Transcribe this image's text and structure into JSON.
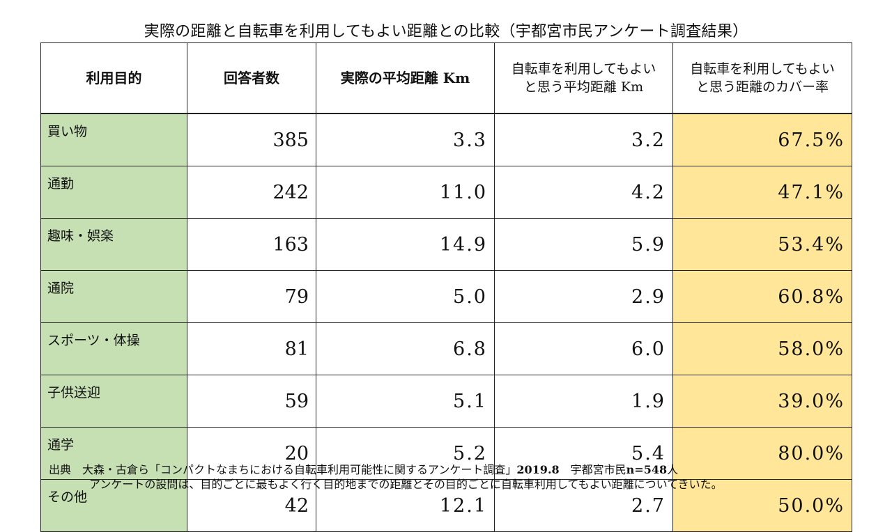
{
  "title": "実際の距離と自転車を利用してもよい距離との比較（宇都宮市民アンケート調査結果）",
  "table": {
    "headers": [
      "利用目的",
      "回答者数",
      "実際の平均距離 Km",
      [
        "自転車を利用してもよい",
        "と思う平均距離 Km"
      ],
      [
        "自転車を利用してもよい",
        "と思う距離のカバー率"
      ]
    ],
    "rows": [
      {
        "purpose": "買い物",
        "respondents": "385",
        "actual_km": "3.3",
        "ok_km": "3.2",
        "coverage": "67.5%"
      },
      {
        "purpose": "通勤",
        "respondents": "242",
        "actual_km": "11.0",
        "ok_km": "4.2",
        "coverage": "47.1%"
      },
      {
        "purpose": "趣味・娯楽",
        "respondents": "163",
        "actual_km": "14.9",
        "ok_km": "5.9",
        "coverage": "53.4%"
      },
      {
        "purpose": "通院",
        "respondents": "79",
        "actual_km": "5.0",
        "ok_km": "2.9",
        "coverage": "60.8%"
      },
      {
        "purpose": "スポーツ・体操",
        "respondents": "81",
        "actual_km": "6.8",
        "ok_km": "6.0",
        "coverage": "58.0%"
      },
      {
        "purpose": "子供送迎",
        "respondents": "59",
        "actual_km": "5.1",
        "ok_km": "1.9",
        "coverage": "39.0%"
      },
      {
        "purpose": "通学",
        "respondents": "20",
        "actual_km": "5.2",
        "ok_km": "5.4",
        "coverage": "80.0%"
      },
      {
        "purpose": "その他",
        "respondents": "42",
        "actual_km": "12.1",
        "ok_km": "2.7",
        "coverage": "50.0%"
      }
    ]
  },
  "source": {
    "label": "出典",
    "line1_pre": "大森・古倉ら「コンパクトなまちにおける自転車利用可能性に関するアンケート調査」",
    "line1_date": "2019.8",
    "line1_org": "宇都宮市民",
    "line1_n": "n=548",
    "line1_unit": "人",
    "line2": "アンケートの設問は、目的ごとに最もよく行く目的地までの距離とその目的ごとに自転車利用してもよい距離についてきいた。"
  }
}
